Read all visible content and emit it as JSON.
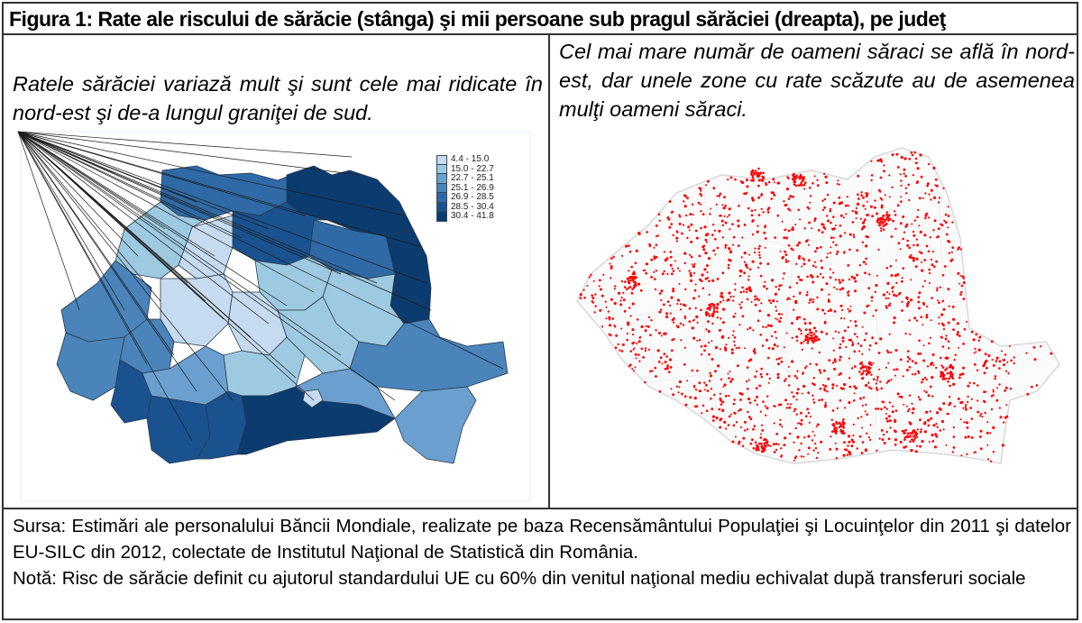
{
  "figure": {
    "title": "Figura 1: Rate ale riscului de sărăcie (stânga) şi mii persoane sub pragul sărăciei (dreapta), pe judeţ"
  },
  "left_panel": {
    "caption": "Ratele sărăciei variază mult şi sunt cele mai ridicate în nord-est şi de-a lungul graniţei de sud.",
    "legend": {
      "items": [
        {
          "label": "4.4 - 15.0",
          "color": "#c6dbef"
        },
        {
          "label": "15.0 - 22.7",
          "color": "#9ecae1"
        },
        {
          "label": "22.7 - 25.1",
          "color": "#6b9fcf"
        },
        {
          "label": "25.1 - 26.9",
          "color": "#4a84bb"
        },
        {
          "label": "26.9 - 28.5",
          "color": "#2f6aa6"
        },
        {
          "label": "28.5 - 30.4",
          "color": "#1a5290"
        },
        {
          "label": "30.4 - 41.8",
          "color": "#0b3b6f"
        }
      ]
    }
  },
  "right_panel": {
    "caption": "Cel mai mare număr de oameni săraci se află în nord-est, dar unele zone cu rate scăzute au de asemenea mulţi oameni săraci.",
    "dot_color": "#ff0000",
    "boundary_color": "#dddddd"
  },
  "footer": {
    "source": "Sursa: Estimări ale personalului Băncii Mondiale, realizate pe baza Recensământului Populaţiei şi Locuinţelor din 2011 şi datelor EU-SILC din 2012, colectate de Institutul Naţional de Statistică din România.",
    "note": "Notă: Risc de sărăcie definit cu ajutorul standardului UE cu 60% din venitul naţional mediu echivalat după transferuri sociale"
  },
  "chart_data": [
    {
      "type": "heatmap",
      "title": "Rate ale riscului de sărăcie pe judeţ (choropleth)",
      "legend_title": "",
      "classes": [
        "4.4 - 15.0",
        "15.0 - 22.7",
        "22.7 - 25.1",
        "25.1 - 26.9",
        "26.9 - 28.5",
        "28.5 - 30.4",
        "30.4 - 41.8"
      ],
      "colors": [
        "#c6dbef",
        "#9ecae1",
        "#6b9fcf",
        "#4a84bb",
        "#2f6aa6",
        "#1a5290",
        "#0b3b6f"
      ],
      "legend_position": "top-right"
    },
    {
      "type": "scatter",
      "title": "Mii persoane sub pragul sărăciei (dot density map)",
      "marker_color": "#ff0000"
    }
  ]
}
